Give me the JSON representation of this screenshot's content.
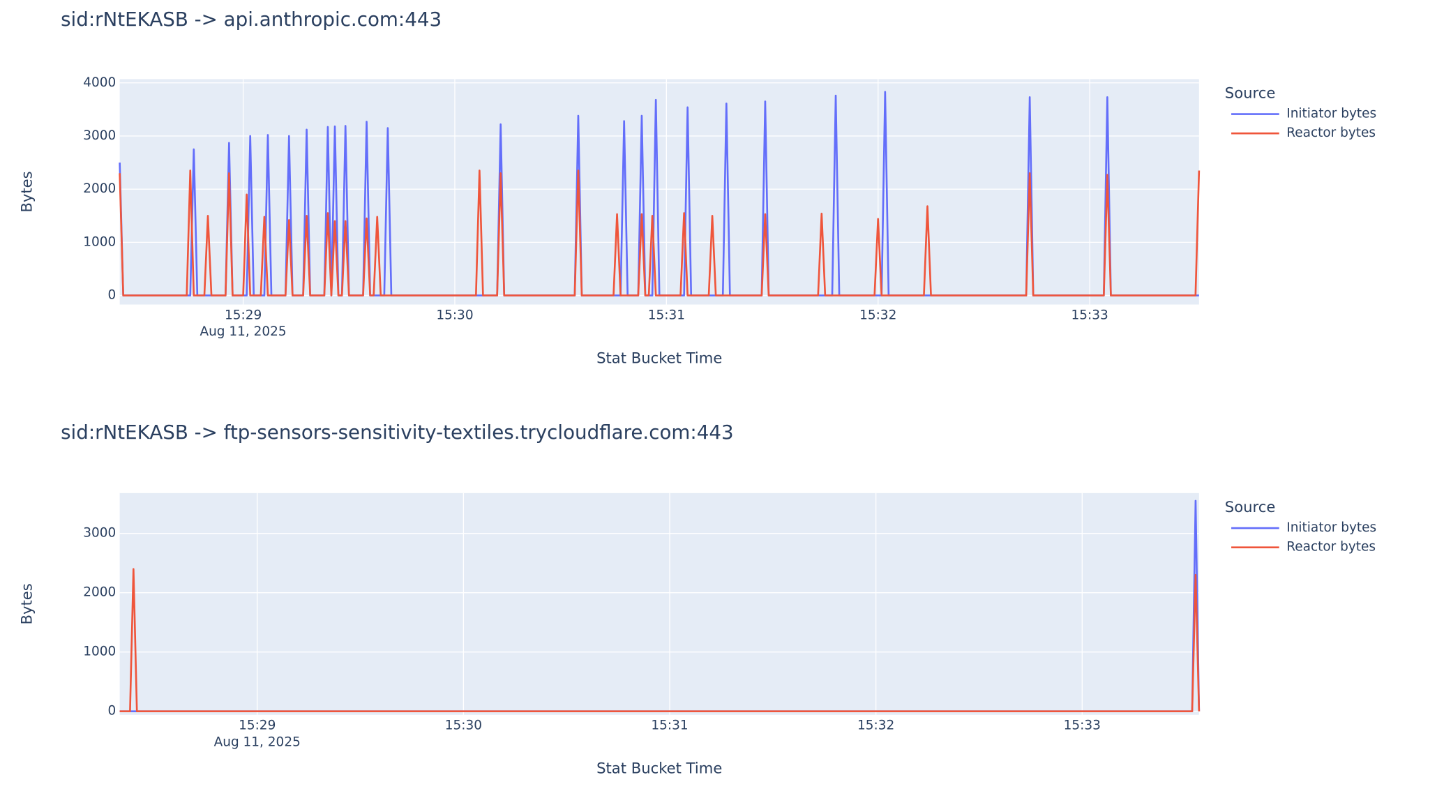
{
  "chart_data": [
    {
      "type": "line",
      "title": "sid:rNtEKASB -> api.anthropic.com:443",
      "x_label": "Stat Bucket Time",
      "y_label": "Bytes",
      "x_date_label": "Aug 11, 2025",
      "legend_title": "Source",
      "legend": "right",
      "grid": true,
      "x": [
        "15:28:25",
        "15:28:26",
        "15:28:44",
        "15:28:45",
        "15:28:46",
        "15:28:47",
        "15:28:49",
        "15:28:50",
        "15:28:51",
        "15:28:55",
        "15:28:56",
        "15:28:57",
        "15:29:00",
        "15:29:01",
        "15:29:02",
        "15:29:03",
        "15:29:05",
        "15:29:06",
        "15:29:07",
        "15:29:08",
        "15:29:12",
        "15:29:13",
        "15:29:14",
        "15:29:17",
        "15:29:18",
        "15:29:19",
        "15:29:23",
        "15:29:24",
        "15:29:25",
        "15:29:26",
        "15:29:27",
        "15:29:28",
        "15:29:29",
        "15:29:30",
        "15:29:34",
        "15:29:35",
        "15:29:36",
        "15:29:37",
        "15:29:38",
        "15:29:39",
        "15:29:40",
        "15:29:41",
        "15:29:42",
        "15:30:06",
        "15:30:07",
        "15:30:08",
        "15:30:12",
        "15:30:13",
        "15:30:14",
        "15:30:34",
        "15:30:35",
        "15:30:36",
        "15:30:45",
        "15:30:46",
        "15:30:47",
        "15:30:48",
        "15:30:49",
        "15:30:52",
        "15:30:53",
        "15:30:54",
        "15:30:55",
        "15:30:56",
        "15:30:57",
        "15:30:58",
        "15:31:04",
        "15:31:05",
        "15:31:06",
        "15:31:07",
        "15:31:12",
        "15:31:13",
        "15:31:14",
        "15:31:16",
        "15:31:17",
        "15:31:18",
        "15:31:27",
        "15:31:28",
        "15:31:29",
        "15:31:43",
        "15:31:44",
        "15:31:45",
        "15:31:47",
        "15:31:48",
        "15:31:49",
        "15:31:59",
        "15:32:00",
        "15:32:01",
        "15:32:02",
        "15:32:03",
        "15:32:13",
        "15:32:14",
        "15:32:15",
        "15:32:42",
        "15:32:43",
        "15:32:44",
        "15:33:04",
        "15:33:05",
        "15:33:06",
        "15:33:30",
        "15:33:31"
      ],
      "series": [
        {
          "name": "Initiator bytes",
          "color": "#636efa",
          "values": [
            2500,
            0,
            0,
            0,
            2750,
            0,
            0,
            0,
            0,
            0,
            2870,
            0,
            0,
            0,
            3000,
            0,
            0,
            0,
            3020,
            0,
            0,
            3000,
            0,
            0,
            3120,
            0,
            0,
            3170,
            0,
            3180,
            0,
            0,
            3190,
            0,
            0,
            3270,
            0,
            0,
            0,
            0,
            0,
            3150,
            0,
            0,
            0,
            0,
            0,
            3220,
            0,
            0,
            3380,
            0,
            0,
            0,
            0,
            3280,
            0,
            0,
            3380,
            0,
            0,
            0,
            3680,
            0,
            0,
            0,
            3540,
            0,
            0,
            0,
            0,
            0,
            3610,
            0,
            0,
            3650,
            0,
            0,
            0,
            0,
            0,
            3760,
            0,
            0,
            0,
            0,
            3830,
            0,
            0,
            0,
            0,
            0,
            3730,
            0,
            0,
            3730,
            0,
            0,
            0
          ]
        },
        {
          "name": "Reactor bytes",
          "color": "#ef553b",
          "values": [
            2300,
            0,
            0,
            2350,
            0,
            0,
            0,
            1500,
            0,
            0,
            2300,
            0,
            0,
            1900,
            0,
            0,
            0,
            1480,
            0,
            0,
            0,
            1420,
            0,
            0,
            1500,
            0,
            0,
            1550,
            0,
            1400,
            0,
            0,
            1400,
            0,
            0,
            1450,
            0,
            0,
            1480,
            0,
            0,
            0,
            0,
            0,
            2350,
            0,
            0,
            2300,
            0,
            0,
            2350,
            0,
            0,
            1530,
            0,
            0,
            0,
            0,
            1530,
            0,
            0,
            1500,
            0,
            0,
            0,
            1550,
            0,
            0,
            0,
            1500,
            0,
            0,
            0,
            0,
            0,
            1530,
            0,
            0,
            1540,
            0,
            0,
            0,
            0,
            0,
            1440,
            0,
            0,
            0,
            0,
            1680,
            0,
            0,
            2300,
            0,
            0,
            2270,
            0,
            0,
            2350
          ]
        }
      ],
      "xlim": [
        "15:28:25",
        "15:33:31"
      ],
      "xticks": [
        "15:29",
        "15:30",
        "15:31",
        "15:32",
        "15:33"
      ],
      "ylim": [
        -170,
        4070
      ],
      "yticks": [
        0,
        1000,
        2000,
        3000,
        4000
      ]
    },
    {
      "type": "line",
      "title": "sid:rNtEKASB -> ftp-sensors-sensitivity-textiles.trycloudflare.com:443",
      "x_label": "Stat Bucket Time",
      "y_label": "Bytes",
      "x_date_label": "Aug 11, 2025",
      "legend_title": "Source",
      "legend": "right",
      "grid": true,
      "x": [
        "15:28:20",
        "15:28:23",
        "15:28:24",
        "15:28:25",
        "15:33:32",
        "15:33:33",
        "15:33:34"
      ],
      "series": [
        {
          "name": "Initiator bytes",
          "color": "#636efa",
          "values": [
            0,
            0,
            0,
            0,
            0,
            3550,
            0
          ]
        },
        {
          "name": "Reactor bytes",
          "color": "#ef553b",
          "values": [
            0,
            0,
            2400,
            0,
            0,
            2300,
            0
          ]
        }
      ],
      "xlim": [
        "15:28:20",
        "15:33:34"
      ],
      "xticks": [
        "15:29",
        "15:30",
        "15:31",
        "15:32",
        "15:33"
      ],
      "ylim": [
        -60,
        3680
      ],
      "yticks": [
        0,
        1000,
        2000,
        3000
      ]
    }
  ]
}
